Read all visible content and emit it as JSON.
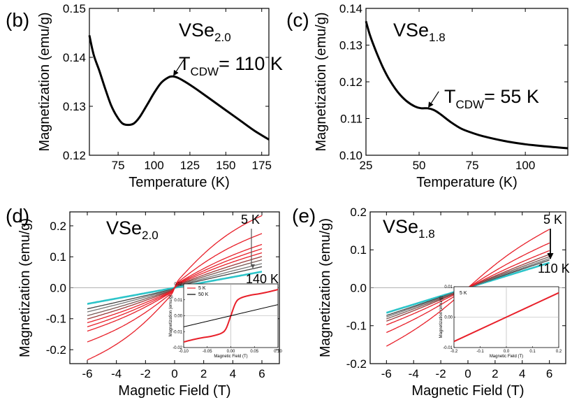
{
  "panels": {
    "b": {
      "tag": "(b)",
      "material": "VSe",
      "material_sub": "2.0",
      "tcdw_label": "T",
      "tcdw_sub": "CDW",
      "tcdw_value": "= 110 K"
    },
    "c": {
      "tag": "(c)",
      "material": "VSe",
      "material_sub": "1.8",
      "tcdw_label": "T",
      "tcdw_sub": "CDW",
      "tcdw_value": "= 55 K"
    },
    "d": {
      "tag": "(d)",
      "material": "VSe",
      "material_sub": "2.0",
      "top_label": "5 K",
      "bottom_label": "140 K"
    },
    "e": {
      "tag": "(e)",
      "material": "VSe",
      "material_sub": "1.8",
      "top_label": "5 K",
      "bottom_label": "110 K"
    }
  },
  "chart_data": [
    {
      "id": "b",
      "type": "line",
      "xlabel": "Temperature (K)",
      "ylabel": "Magnetization (emu/g)",
      "xlim": [
        55,
        180
      ],
      "ylim": [
        0.12,
        0.15
      ],
      "xticks": [
        75,
        100,
        125,
        150,
        175
      ],
      "yticks": [
        0.12,
        0.13,
        0.14,
        0.15
      ],
      "xtick_labels": [
        "75",
        "100",
        "125",
        "150",
        "175"
      ],
      "ytick_labels": [
        "0.12",
        "0.13",
        "0.14",
        "0.15"
      ],
      "series": [
        {
          "color": "#000000",
          "x": [
            55,
            58,
            62,
            66,
            70,
            74,
            78,
            82,
            86,
            90,
            95,
            100,
            105,
            110,
            113,
            116,
            120,
            125,
            130,
            140,
            150,
            160,
            170,
            180
          ],
          "y": [
            0.1445,
            0.1405,
            0.1372,
            0.1336,
            0.1303,
            0.128,
            0.1265,
            0.1262,
            0.1265,
            0.1278,
            0.1302,
            0.1327,
            0.1348,
            0.1359,
            0.1361,
            0.1359,
            0.1353,
            0.1344,
            0.1334,
            0.1313,
            0.1292,
            0.1271,
            0.125,
            0.1232
          ]
        }
      ],
      "annotation": {
        "x": 113,
        "y": 0.1361
      }
    },
    {
      "id": "c",
      "type": "line",
      "xlabel": "Temperature (K)",
      "ylabel": "Magnetization (emu/g)",
      "xlim": [
        25,
        120
      ],
      "ylim": [
        0.1,
        0.14
      ],
      "xticks": [
        25,
        50,
        75,
        100
      ],
      "yticks": [
        0.1,
        0.11,
        0.12,
        0.13,
        0.14
      ],
      "xtick_labels": [
        "25",
        "50",
        "75",
        "100"
      ],
      "ytick_labels": [
        "0.10",
        "0.11",
        "0.12",
        "0.13",
        "0.14"
      ],
      "series": [
        {
          "color": "#000000",
          "x": [
            25,
            27,
            30,
            33,
            36,
            40,
            44,
            48,
            51,
            54,
            57,
            60,
            65,
            70,
            75,
            80,
            90,
            100,
            110,
            120
          ],
          "y": [
            0.1365,
            0.1325,
            0.1279,
            0.1239,
            0.1206,
            0.1172,
            0.1148,
            0.1133,
            0.1128,
            0.1128,
            0.1123,
            0.1112,
            0.109,
            0.1072,
            0.1061,
            0.1052,
            0.1039,
            0.103,
            0.1024,
            0.1019
          ]
        }
      ],
      "annotation": {
        "x": 54,
        "y": 0.1128
      }
    },
    {
      "id": "d",
      "type": "line",
      "xlabel": "Magnetic Field (T)",
      "ylabel": "Magnetization (emu/g)",
      "xlim": [
        -7.2,
        7.2
      ],
      "ylim": [
        -0.245,
        0.245
      ],
      "xticks": [
        -6,
        -4,
        -2,
        0,
        2,
        4,
        6
      ],
      "yticks": [
        -0.2,
        -0.1,
        0.0,
        0.1,
        0.2
      ],
      "xtick_labels": [
        "-6",
        "-4",
        "-2",
        "0",
        "2",
        "4",
        "6"
      ],
      "ytick_labels": [
        "-0.2",
        "-0.1",
        "0.0",
        "0.1",
        "0.2"
      ],
      "series": [
        {
          "color": "#e8202a",
          "m6": 0.221,
          "curv": 0.6,
          "step": 0.012
        },
        {
          "color": "#e8202a",
          "m6": 0.165,
          "curv": 0.5,
          "step": 0.01
        },
        {
          "color": "#e8202a",
          "m6": 0.131,
          "curv": 0.4,
          "step": 0.009
        },
        {
          "color": "#e8202a",
          "m6": 0.118,
          "curv": 0.35,
          "step": 0.008
        },
        {
          "color": "#e8202a",
          "m6": 0.106,
          "curv": 0.3,
          "step": 0.007
        },
        {
          "color": "#9b3a3a",
          "m6": 0.095,
          "curv": 0.2,
          "step": 0.006
        },
        {
          "color": "#7a5a55",
          "m6": 0.085,
          "curv": 0.15,
          "step": 0.005
        },
        {
          "color": "#777777",
          "m6": 0.074,
          "curv": 0.1,
          "step": 0.004
        },
        {
          "color": "#444444",
          "m6": 0.065,
          "curv": 0.05,
          "step": 0.003
        },
        {
          "color": "#2cc4c9",
          "m6": 0.052,
          "curv": 0.0,
          "step": 0.0
        }
      ],
      "inset": {
        "xlabel": "Magnetic Field (T)",
        "ylabel": "Magnetization (emu/g)",
        "xlim": [
          -0.1,
          0.1
        ],
        "ylim": [
          -0.02,
          0.02
        ],
        "xticks": [
          -0.1,
          -0.05,
          0.0,
          0.05,
          0.1
        ],
        "yticks": [
          -0.02,
          -0.01,
          0.0,
          0.01,
          0.02
        ],
        "xtick_labels": [
          "-0.10",
          "-0.05",
          "0.00",
          "0.05",
          "0.10"
        ],
        "ytick_labels": [
          "-0.02",
          "-0.01",
          "0.00",
          "0.01",
          "0.02"
        ],
        "legend": [
          {
            "name": "5 K",
            "color": "#e8202a"
          },
          {
            "name": "50 K",
            "color": "#000000"
          }
        ],
        "series": [
          {
            "name": "5 K",
            "color": "#e8202a",
            "x": [
              -0.1,
              -0.08,
              -0.06,
              -0.04,
              -0.02,
              -0.01,
              0.0,
              0.01,
              0.02,
              0.04,
              0.06,
              0.08,
              0.1
            ],
            "y": [
              -0.0165,
              -0.015,
              -0.0138,
              -0.0128,
              -0.011,
              -0.008,
              0.0,
              0.008,
              0.011,
              0.0128,
              0.0138,
              0.015,
              0.0165
            ]
          },
          {
            "name": "50 K",
            "color": "#000000",
            "x": [
              -0.1,
              0.1
            ],
            "y": [
              -0.007,
              0.007
            ]
          }
        ]
      }
    },
    {
      "id": "e",
      "type": "line",
      "xlabel": "Magnetic Field (T)",
      "ylabel": "Magnetization (emu/g)",
      "xlim": [
        -7.2,
        7.2
      ],
      "ylim": [
        -0.2,
        0.2
      ],
      "xticks": [
        -6,
        -4,
        -2,
        0,
        2,
        4,
        6
      ],
      "yticks": [
        -0.2,
        -0.1,
        0.0,
        0.1,
        0.2
      ],
      "xtick_labels": [
        "-6",
        "-4",
        "-2",
        "0",
        "2",
        "4",
        "6"
      ],
      "ytick_labels": [
        "-0.2",
        "-0.1",
        "0.0",
        "0.1",
        "0.2"
      ],
      "series": [
        {
          "color": "#e8202a",
          "m6": 0.154,
          "curv": 0.35,
          "step": 0.0
        },
        {
          "color": "#e8202a",
          "m6": 0.118,
          "curv": 0.25,
          "step": 0.0
        },
        {
          "color": "#e8202a",
          "m6": 0.098,
          "curv": 0.18,
          "step": 0.0
        },
        {
          "color": "#9b3a3a",
          "m6": 0.088,
          "curv": 0.12,
          "step": 0.0
        },
        {
          "color": "#7a5a55",
          "m6": 0.082,
          "curv": 0.08,
          "step": 0.0
        },
        {
          "color": "#777777",
          "m6": 0.077,
          "curv": 0.05,
          "step": 0.0
        },
        {
          "color": "#444444",
          "m6": 0.073,
          "curv": 0.03,
          "step": 0.0
        },
        {
          "color": "#2cc4c9",
          "m6": 0.066,
          "curv": 0.0,
          "step": 0.0
        }
      ],
      "inset": {
        "xlabel": "Magnetic Field (T)",
        "ylabel": "Magnetization (emu/g)",
        "xlim": [
          -0.2,
          0.2
        ],
        "ylim": [
          -0.01,
          0.01
        ],
        "xticks": [
          -0.2,
          -0.1,
          0.0,
          0.1,
          0.2
        ],
        "yticks": [
          -0.01,
          0.0,
          0.01
        ],
        "xtick_labels": [
          "-0.2",
          "-0.1",
          "0.0",
          "0.1",
          "0.2"
        ],
        "ytick_labels": [
          "-0.01",
          "0.00",
          "0.01"
        ],
        "legend": [
          {
            "name": "5 K",
            "color": "#e8202a"
          }
        ],
        "series": [
          {
            "name": "5 K",
            "color": "#e8202a",
            "x": [
              -0.2,
              0.2
            ],
            "y": [
              -0.008,
              0.008
            ]
          }
        ]
      }
    }
  ]
}
